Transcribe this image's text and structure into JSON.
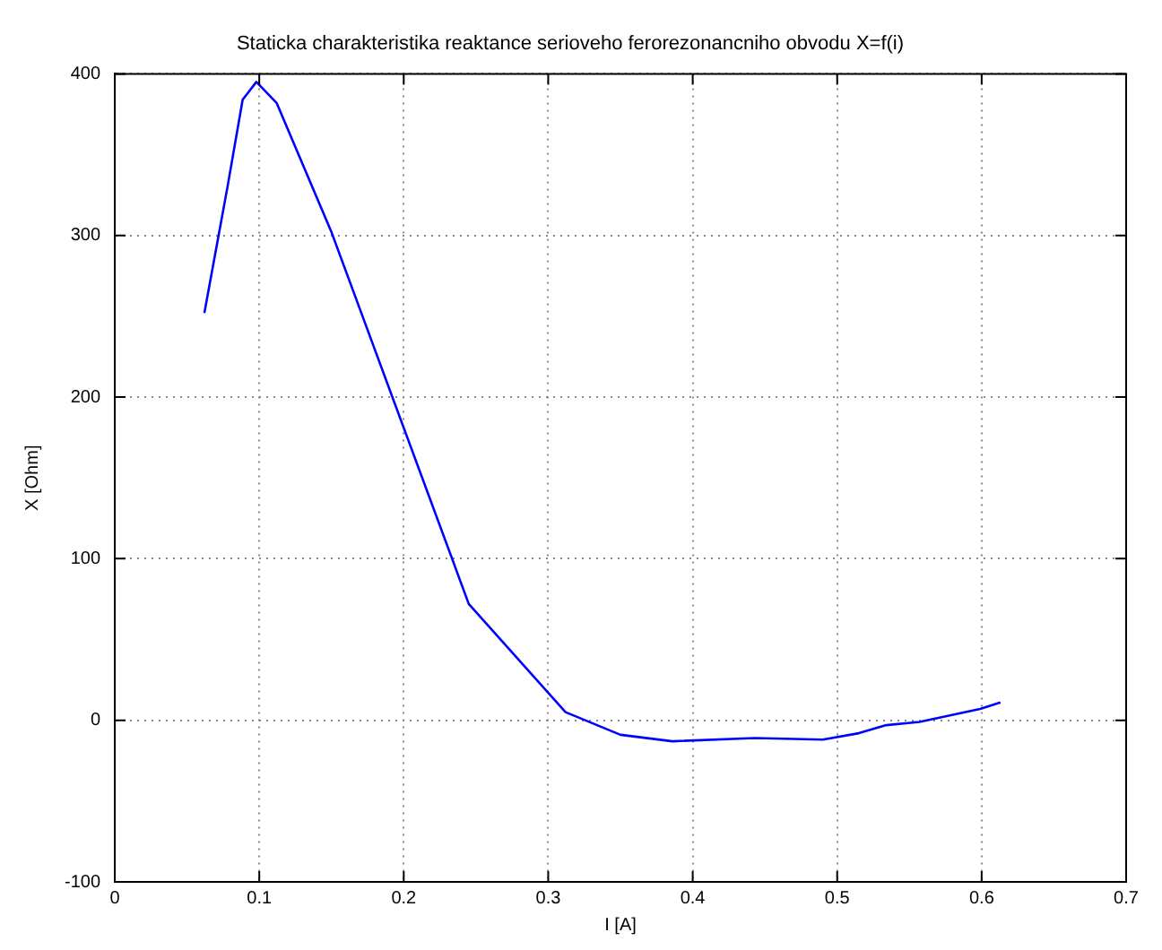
{
  "chart_data": {
    "type": "line",
    "title": "Staticka charakteristika reaktance serioveho ferorezonancniho obvodu X=f(i)",
    "xlabel": "I [A]",
    "ylabel": "X [Ohm]",
    "series": [
      {
        "color": "#0000ff",
        "x": [
          0.062,
          0.078,
          0.0885,
          0.098,
          0.112,
          0.15,
          0.245,
          0.312,
          0.35,
          0.386,
          0.443,
          0.49,
          0.515,
          0.534,
          0.557,
          0.599,
          0.613
        ],
        "values": [
          252,
          330,
          384,
          395,
          382,
          302,
          72,
          5,
          -9,
          -13,
          -11,
          -12,
          -8,
          -3,
          -1,
          7,
          11
        ]
      }
    ],
    "xlim": [
      0,
      0.7
    ],
    "xticks": [
      0,
      0.1,
      0.2,
      0.3,
      0.4,
      0.5,
      0.6,
      0.7
    ],
    "ylim": [
      -100,
      400
    ],
    "yticks": [
      -100,
      0,
      100,
      200,
      300,
      400
    ],
    "grid": true,
    "legend": false,
    "marker": "none",
    "line_style": "solid"
  }
}
